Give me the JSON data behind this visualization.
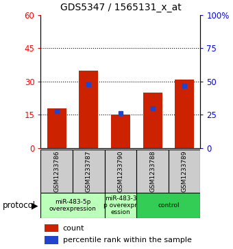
{
  "title": "GDS5347 / 1565131_x_at",
  "samples": [
    "GSM1233786",
    "GSM1233787",
    "GSM1233790",
    "GSM1233788",
    "GSM1233789"
  ],
  "count_values": [
    18,
    35,
    15,
    25,
    31
  ],
  "percentile_values": [
    28,
    48,
    26,
    30,
    47
  ],
  "left_ylim": [
    0,
    60
  ],
  "left_yticks": [
    0,
    15,
    30,
    45,
    60
  ],
  "right_ylim": [
    0,
    100
  ],
  "right_yticks": [
    0,
    25,
    50,
    75,
    100
  ],
  "bar_color": "#cc2200",
  "dot_color": "#2244cc",
  "grid_lines": [
    15,
    30,
    45
  ],
  "protocol_groups": [
    {
      "label": "miR-483-5p\noverexpression",
      "samples": [
        0,
        1
      ],
      "color": "#bbffbb"
    },
    {
      "label": "miR-483-3\np overexpr\nession",
      "samples": [
        2
      ],
      "color": "#bbffbb"
    },
    {
      "label": "control",
      "samples": [
        3,
        4
      ],
      "color": "#33cc55"
    }
  ],
  "protocol_label": "protocol",
  "legend_count": "count",
  "legend_percentile": "percentile rank within the sample",
  "background_color": "#ffffff",
  "plot_bg": "#ffffff",
  "sample_bg": "#cccccc"
}
